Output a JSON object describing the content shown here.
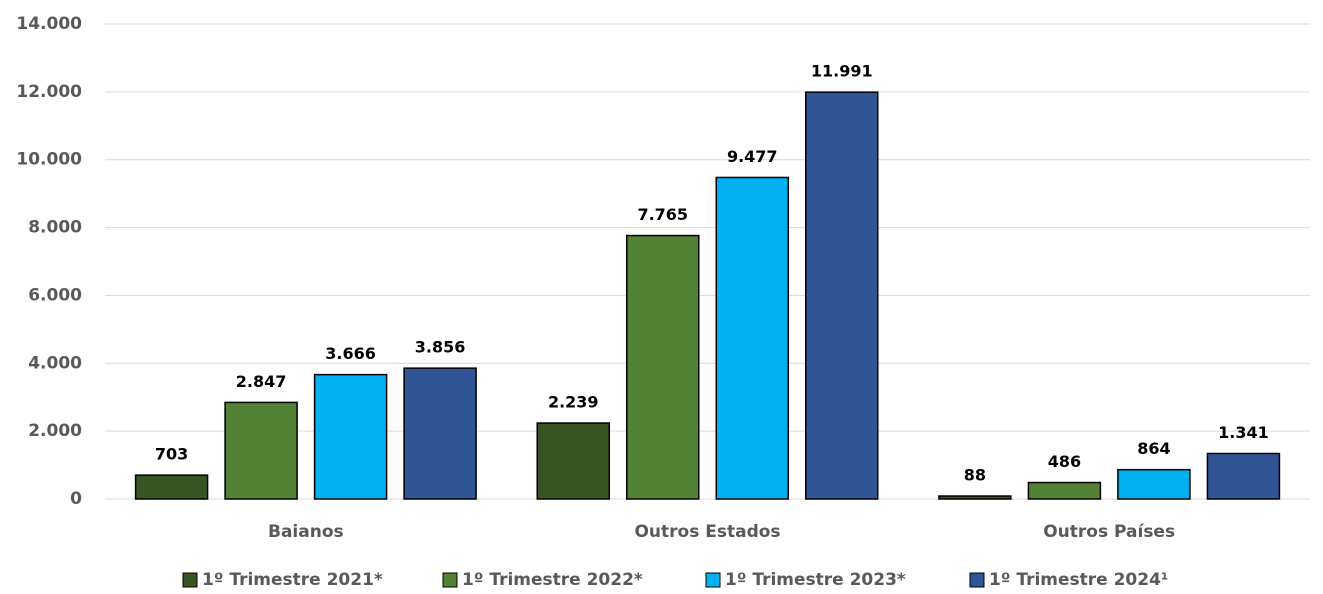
{
  "chart_data": {
    "type": "bar",
    "categories": [
      "Baianos",
      "Outros Estados",
      "Outros Países"
    ],
    "series": [
      {
        "name": "1º Trimestre 2021*",
        "color": "#375623",
        "values": [
          703,
          2239,
          88
        ],
        "value_labels": [
          "703",
          "2.239",
          "88"
        ]
      },
      {
        "name": "1º Trimestre 2022*",
        "color": "#548235",
        "values": [
          2847,
          7765,
          486
        ],
        "value_labels": [
          "2.847",
          "7.765",
          "486"
        ]
      },
      {
        "name": "1º Trimestre 2023*",
        "color": "#00b0f0",
        "values": [
          3666,
          9477,
          864
        ],
        "value_labels": [
          "3.666",
          "9.477",
          "864"
        ]
      },
      {
        "name": "1º Trimestre 2024¹",
        "color": "#2f5597",
        "values": [
          3856,
          11991,
          1341
        ],
        "value_labels": [
          "3.856",
          "11.991",
          "1.341"
        ]
      }
    ],
    "ylim": [
      0,
      14000
    ],
    "yticks": [
      0,
      {
        "value": 2000,
        "label": "2.000"
      },
      {
        "value": 4000,
        "label": "4.000"
      },
      {
        "value": 6000,
        "label": "6.000"
      },
      {
        "value": 8000,
        "label": "8.000"
      },
      {
        "value": 10000,
        "label": "10.000"
      },
      {
        "value": 12000,
        "label": "12.000"
      },
      {
        "value": 14000,
        "label": "14.000"
      }
    ],
    "grid": true,
    "legend": "bottom"
  }
}
